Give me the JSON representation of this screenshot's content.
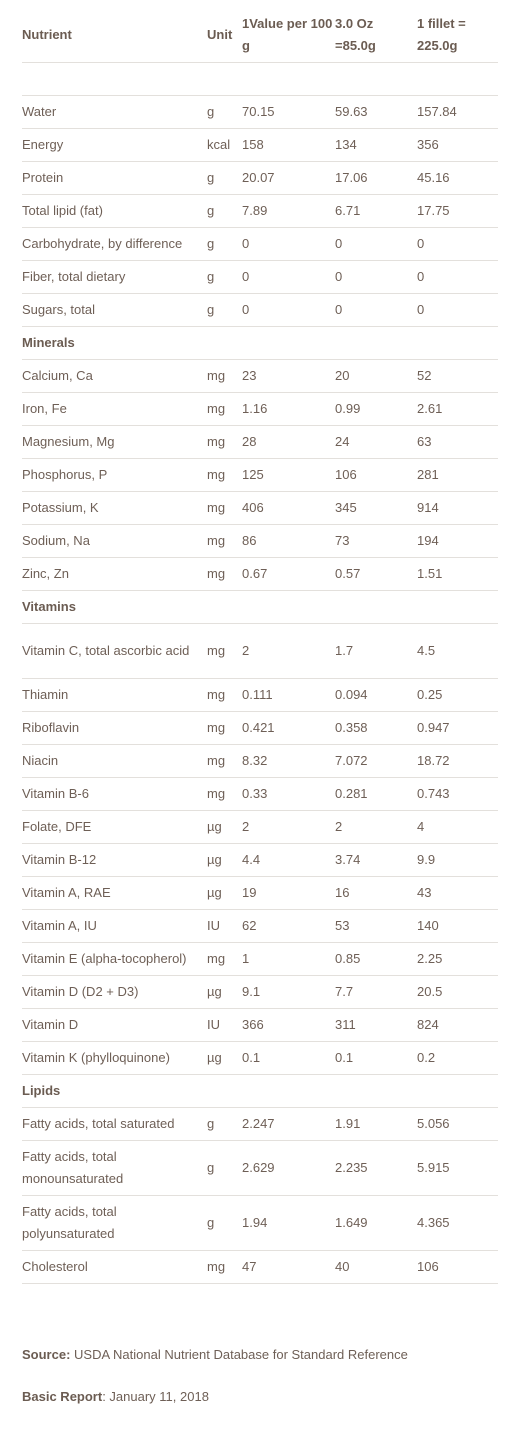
{
  "table": {
    "headers": {
      "nutrient": "Nutrient",
      "unit": "Unit",
      "value1": "1Value per 100 g",
      "value2": "3.0 Oz =85.0g",
      "value3": "1 fillet = 225.0g"
    },
    "general": [
      {
        "name": "Water",
        "unit": "g",
        "v1": "70.15",
        "v2": "59.63",
        "v3": "157.84"
      },
      {
        "name": "Energy",
        "unit": "kcal",
        "v1": "158",
        "v2": "134",
        "v3": "356"
      },
      {
        "name": "Protein",
        "unit": "g",
        "v1": "20.07",
        "v2": "17.06",
        "v3": "45.16"
      },
      {
        "name": "Total lipid (fat)",
        "unit": "g",
        "v1": "7.89",
        "v2": "6.71",
        "v3": "17.75"
      },
      {
        "name": "Carbohydrate, by difference",
        "unit": "g",
        "v1": "0",
        "v2": "0",
        "v3": "0"
      },
      {
        "name": "Fiber, total dietary",
        "unit": "g",
        "v1": "0",
        "v2": "0",
        "v3": "0"
      },
      {
        "name": "Sugars, total",
        "unit": "g",
        "v1": "0",
        "v2": "0",
        "v3": "0"
      }
    ],
    "minerals_title": "Minerals",
    "minerals": [
      {
        "name": "Calcium, Ca",
        "unit": "mg",
        "v1": "23",
        "v2": "20",
        "v3": "52"
      },
      {
        "name": "Iron, Fe",
        "unit": "mg",
        "v1": "1.16",
        "v2": "0.99",
        "v3": "2.61"
      },
      {
        "name": "Magnesium, Mg",
        "unit": "mg",
        "v1": "28",
        "v2": "24",
        "v3": "63"
      },
      {
        "name": "Phosphorus, P",
        "unit": "mg",
        "v1": "125",
        "v2": "106",
        "v3": "281"
      },
      {
        "name": "Potassium, K",
        "unit": "mg",
        "v1": "406",
        "v2": "345",
        "v3": "914"
      },
      {
        "name": "Sodium, Na",
        "unit": "mg",
        "v1": "86",
        "v2": "73",
        "v3": "194"
      },
      {
        "name": "Zinc, Zn",
        "unit": "mg",
        "v1": "0.67",
        "v2": "0.57",
        "v3": "1.51"
      }
    ],
    "vitamins_title": "Vitamins",
    "vitamins": [
      {
        "name": "Vitamin C, total ascorbic acid",
        "unit": "mg",
        "v1": "2",
        "v2": "1.7",
        "v3": "4.5"
      },
      {
        "name": "Thiamin",
        "unit": "mg",
        "v1": "0.111",
        "v2": "0.094",
        "v3": "0.25"
      },
      {
        "name": "Riboflavin",
        "unit": "mg",
        "v1": "0.421",
        "v2": "0.358",
        "v3": "0.947"
      },
      {
        "name": "Niacin",
        "unit": "mg",
        "v1": "8.32",
        "v2": "7.072",
        "v3": "18.72"
      },
      {
        "name": "Vitamin B-6",
        "unit": "mg",
        "v1": "0.33",
        "v2": "0.281",
        "v3": "0.743"
      },
      {
        "name": "Folate, DFE",
        "unit": "µg",
        "v1": "2",
        "v2": "2",
        "v3": "4"
      },
      {
        "name": "Vitamin B-12",
        "unit": "µg",
        "v1": "4.4",
        "v2": "3.74",
        "v3": "9.9"
      },
      {
        "name": "Vitamin A, RAE",
        "unit": "µg",
        "v1": "19",
        "v2": "16",
        "v3": "43"
      },
      {
        "name": "Vitamin A, IU",
        "unit": "IU",
        "v1": "62",
        "v2": "53",
        "v3": "140"
      },
      {
        "name": "Vitamin E (alpha-tocopherol)",
        "unit": "mg",
        "v1": "1",
        "v2": "0.85",
        "v3": "2.25"
      },
      {
        "name": "Vitamin D (D2 + D3)",
        "unit": "µg",
        "v1": "9.1",
        "v2": "7.7",
        "v3": "20.5"
      },
      {
        "name": "Vitamin D",
        "unit": "IU",
        "v1": "366",
        "v2": "311",
        "v3": "824"
      },
      {
        "name": "Vitamin K (phylloquinone)",
        "unit": "µg",
        "v1": "0.1",
        "v2": "0.1",
        "v3": "0.2"
      }
    ],
    "lipids_title": "Lipids",
    "lipids": [
      {
        "name": "Fatty acids, total saturated",
        "unit": "g",
        "v1": "2.247",
        "v2": "1.91",
        "v3": "5.056"
      },
      {
        "name": "Fatty acids, total monounsaturated",
        "unit": "g",
        "v1": "2.629",
        "v2": "2.235",
        "v3": "5.915"
      },
      {
        "name": "Fatty acids, total polyunsaturated",
        "unit": "g",
        "v1": "1.94",
        "v2": "1.649",
        "v3": "4.365"
      },
      {
        "name": "Cholesterol",
        "unit": "mg",
        "v1": "47",
        "v2": "40",
        "v3": "106"
      }
    ]
  },
  "footer": {
    "source_label": "Source:",
    "source_text": " USDA National Nutrient Database for Standard Reference",
    "report_label": "Basic Report",
    "report_text": ": January 11, 2018"
  },
  "colors": {
    "text": "#6e5f56",
    "border": "#e3e0dc"
  }
}
